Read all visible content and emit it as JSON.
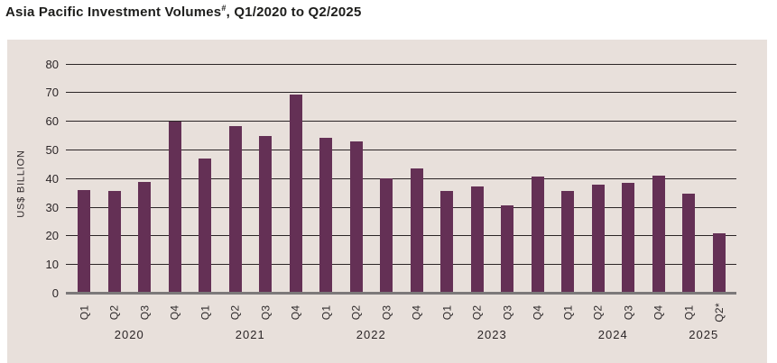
{
  "title_parts": {
    "main": "Asia Pacific Investment Volumes",
    "sup": "#",
    "tail": ", Q1/2020 to Q2/2025"
  },
  "colors": {
    "bar": "#643055",
    "panel_background": "#e8e0db",
    "gridline": "#2b2526",
    "zero_baseline": "#7c797a",
    "text": "#2b2527"
  },
  "chart_data": {
    "type": "bar",
    "title": "Asia Pacific Investment Volumes#, Q1/2020 to Q2/2025",
    "xlabel": "",
    "ylabel": "US$ BILLION",
    "ylim": [
      0,
      80
    ],
    "ytick_step": 10,
    "yticks": [
      0,
      10,
      20,
      30,
      40,
      50,
      60,
      70,
      80
    ],
    "grid": "horizontal",
    "legend": "none",
    "categories": [
      "Q1",
      "Q2",
      "Q3",
      "Q4",
      "Q1",
      "Q2",
      "Q3",
      "Q4",
      "Q1",
      "Q2",
      "Q3",
      "Q4",
      "Q1",
      "Q2",
      "Q3",
      "Q4",
      "Q1",
      "Q2",
      "Q3",
      "Q4",
      "Q1",
      "Q2*"
    ],
    "year_groups": [
      {
        "label": "2020",
        "span": 4
      },
      {
        "label": "2021",
        "span": 4
      },
      {
        "label": "2022",
        "span": 4
      },
      {
        "label": "2023",
        "span": 4
      },
      {
        "label": "2024",
        "span": 4
      },
      {
        "label": "2025",
        "span": 2
      }
    ],
    "series": [
      {
        "name": "Asia Pacific investment volume (US$ billion)",
        "values": [
          36.0,
          35.5,
          38.7,
          59.6,
          47.0,
          58.2,
          54.6,
          69.3,
          54.0,
          52.9,
          40.0,
          43.3,
          35.6,
          37.0,
          30.5,
          40.6,
          35.6,
          37.6,
          38.3,
          41.0,
          34.5,
          20.8
        ]
      }
    ]
  }
}
